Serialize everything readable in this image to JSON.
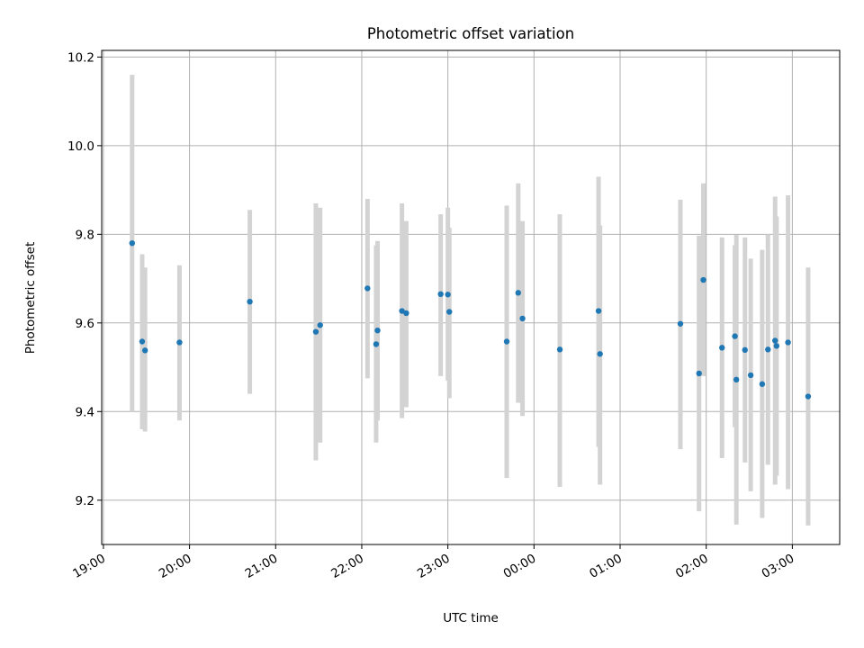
{
  "chart_data": {
    "type": "scatter",
    "title": "Photometric offset variation",
    "xlabel": "UTC time",
    "ylabel": "Photometric offset",
    "x_axis": {
      "kind": "time",
      "ref_time": "19:00",
      "xlim_hours": [
        -0.02,
        8.55
      ],
      "ticks": [
        {
          "hours": 0,
          "label": "19:00"
        },
        {
          "hours": 1,
          "label": "20:00"
        },
        {
          "hours": 2,
          "label": "21:00"
        },
        {
          "hours": 3,
          "label": "22:00"
        },
        {
          "hours": 4,
          "label": "23:00"
        },
        {
          "hours": 5,
          "label": "00:00"
        },
        {
          "hours": 6,
          "label": "01:00"
        },
        {
          "hours": 7,
          "label": "02:00"
        },
        {
          "hours": 8,
          "label": "03:00"
        }
      ]
    },
    "y_axis": {
      "ylim": [
        9.1,
        10.215
      ],
      "ticks": [
        {
          "value": 9.2,
          "label": "9.2"
        },
        {
          "value": 9.4,
          "label": "9.4"
        },
        {
          "value": 9.6,
          "label": "9.6"
        },
        {
          "value": 9.8,
          "label": "9.8"
        },
        {
          "value": 10.0,
          "label": "10.0"
        },
        {
          "value": 10.2,
          "label": "10.2"
        }
      ]
    },
    "grid": true,
    "colors": {
      "point": "#1f77b4",
      "errorbar": "#d3d3d3"
    },
    "series": [
      {
        "points": [
          {
            "t": "19:20",
            "y": 9.78,
            "ylo": 9.4,
            "yhi": 10.16
          },
          {
            "t": "19:27",
            "y": 9.558,
            "ylo": 9.36,
            "yhi": 9.755
          },
          {
            "t": "19:29",
            "y": 9.538,
            "ylo": 9.355,
            "yhi": 9.725
          },
          {
            "t": "19:53",
            "y": 9.556,
            "ylo": 9.38,
            "yhi": 9.73
          },
          {
            "t": "20:42",
            "y": 9.648,
            "ylo": 9.44,
            "yhi": 9.855
          },
          {
            "t": "21:28",
            "y": 9.58,
            "ylo": 9.29,
            "yhi": 9.87
          },
          {
            "t": "21:31",
            "y": 9.595,
            "ylo": 9.33,
            "yhi": 9.86
          },
          {
            "t": "22:04",
            "y": 9.678,
            "ylo": 9.475,
            "yhi": 9.88
          },
          {
            "t": "22:10",
            "y": 9.552,
            "ylo": 9.33,
            "yhi": 9.775
          },
          {
            "t": "22:11",
            "y": 9.583,
            "ylo": 9.38,
            "yhi": 9.785
          },
          {
            "t": "22:28",
            "y": 9.627,
            "ylo": 9.385,
            "yhi": 9.87
          },
          {
            "t": "22:31",
            "y": 9.622,
            "ylo": 9.41,
            "yhi": 9.83
          },
          {
            "t": "22:55",
            "y": 9.665,
            "ylo": 9.48,
            "yhi": 9.845
          },
          {
            "t": "23:00",
            "y": 9.664,
            "ylo": 9.47,
            "yhi": 9.86
          },
          {
            "t": "23:01",
            "y": 9.625,
            "ylo": 9.43,
            "yhi": 9.815
          },
          {
            "t": "23:41",
            "y": 9.558,
            "ylo": 9.25,
            "yhi": 9.865
          },
          {
            "t": "23:49",
            "y": 9.668,
            "ylo": 9.42,
            "yhi": 9.915
          },
          {
            "t": "23:52",
            "y": 9.61,
            "ylo": 9.39,
            "yhi": 9.83
          },
          {
            "t": "00:18",
            "y": 9.54,
            "ylo": 9.23,
            "yhi": 9.845
          },
          {
            "t": "00:45",
            "y": 9.627,
            "ylo": 9.32,
            "yhi": 9.93
          },
          {
            "t": "00:46",
            "y": 9.53,
            "ylo": 9.235,
            "yhi": 9.82
          },
          {
            "t": "01:42",
            "y": 9.598,
            "ylo": 9.315,
            "yhi": 9.878
          },
          {
            "t": "01:55",
            "y": 9.486,
            "ylo": 9.175,
            "yhi": 9.797
          },
          {
            "t": "01:58",
            "y": 9.697,
            "ylo": 9.48,
            "yhi": 9.915
          },
          {
            "t": "02:11",
            "y": 9.544,
            "ylo": 9.295,
            "yhi": 9.793
          },
          {
            "t": "02:20",
            "y": 9.57,
            "ylo": 9.365,
            "yhi": 9.775
          },
          {
            "t": "02:21",
            "y": 9.472,
            "ylo": 9.145,
            "yhi": 9.799
          },
          {
            "t": "02:27",
            "y": 9.539,
            "ylo": 9.285,
            "yhi": 9.793
          },
          {
            "t": "02:31",
            "y": 9.482,
            "ylo": 9.22,
            "yhi": 9.745
          },
          {
            "t": "02:39",
            "y": 9.462,
            "ylo": 9.16,
            "yhi": 9.765
          },
          {
            "t": "02:43",
            "y": 9.54,
            "ylo": 9.28,
            "yhi": 9.8
          },
          {
            "t": "02:48",
            "y": 9.56,
            "ylo": 9.235,
            "yhi": 9.885
          },
          {
            "t": "02:49",
            "y": 9.548,
            "ylo": 9.255,
            "yhi": 9.84
          },
          {
            "t": "02:57",
            "y": 9.556,
            "ylo": 9.225,
            "yhi": 9.888
          },
          {
            "t": "03:11",
            "y": 9.434,
            "ylo": 9.143,
            "yhi": 9.725
          }
        ]
      }
    ]
  }
}
